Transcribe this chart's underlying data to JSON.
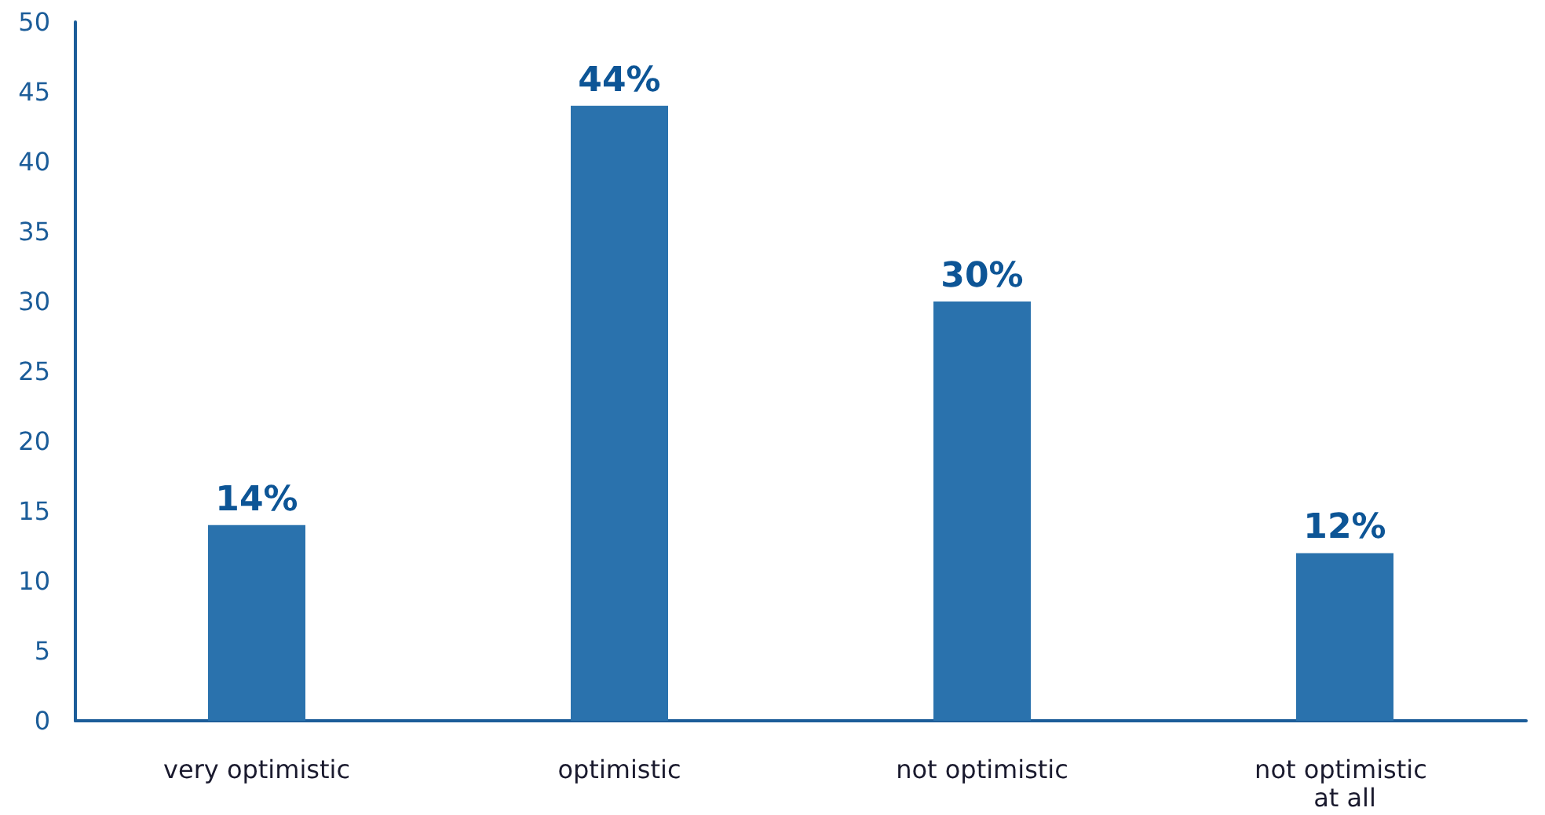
{
  "chart_data": {
    "type": "bar",
    "categories": [
      "very optimistic",
      "optimistic",
      "not optimistic",
      "not optimistic at all"
    ],
    "values": [
      14,
      44,
      30,
      12
    ],
    "value_labels": [
      "14%",
      "44%",
      "30%",
      "12%"
    ],
    "color": "#2a72ad",
    "ylim": [
      0,
      50
    ],
    "yticks": [
      0,
      5,
      10,
      15,
      20,
      25,
      30,
      35,
      40,
      45,
      50
    ],
    "grid": false
  }
}
